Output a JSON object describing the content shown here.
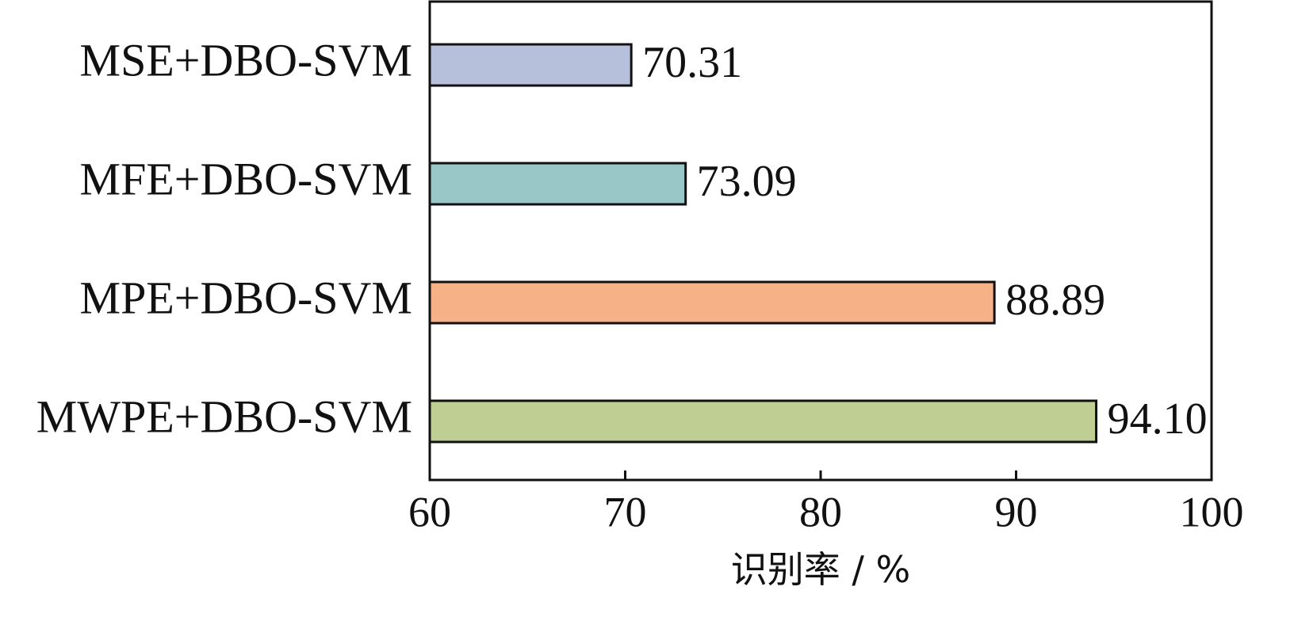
{
  "chart_data": {
    "type": "bar",
    "orientation": "horizontal",
    "categories": [
      "MSE+DBO-SVM",
      "MFE+DBO-SVM",
      "MPE+DBO-SVM",
      "MWPE+DBO-SVM"
    ],
    "values": [
      70.31,
      73.09,
      88.89,
      94.1
    ],
    "value_labels": [
      "70.31",
      "73.09",
      "88.89",
      "94.10"
    ],
    "colors": [
      "#b6c0da",
      "#99c7c8",
      "#f7b186",
      "#bfcf93"
    ],
    "xlabel": "识别率 / %",
    "xlim": [
      60,
      100
    ],
    "xticks": [
      60,
      70,
      80,
      90,
      100
    ],
    "grid": false
  }
}
